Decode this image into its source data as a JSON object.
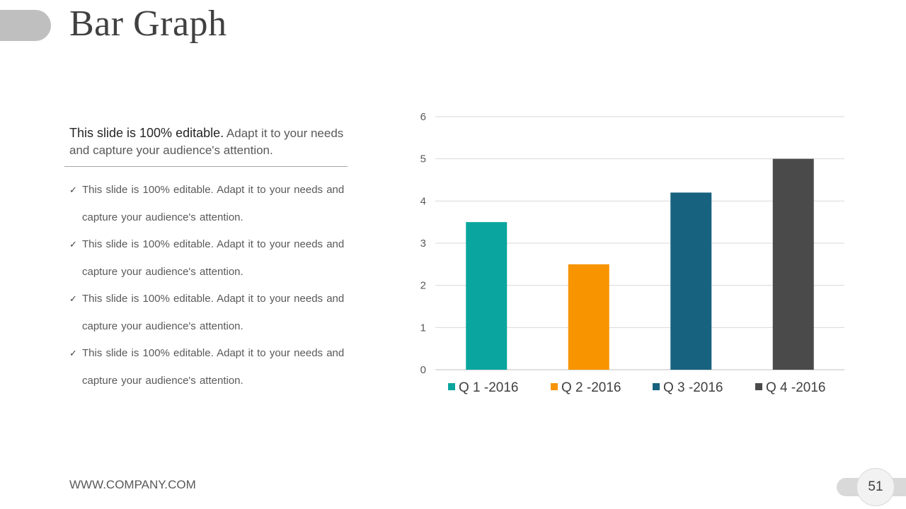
{
  "slide": {
    "title": "Bar Graph",
    "intro_strong": "This slide is 100% editable.",
    "intro_rest": " Adapt it to your needs and capture your audience's attention.",
    "bullets": [
      "This slide is 100% editable. Adapt it to your needs and capture your audience's attention.",
      "This slide is 100% editable. Adapt it to your needs and capture your audience's attention.",
      "This slide is 100% editable. Adapt it to your needs and capture your audience's attention.",
      "This slide is 100% editable. Adapt it to your needs and capture your audience's attention."
    ],
    "check_icon": "✓",
    "footer": "WWW.COMPANY.COM",
    "page_number": "51"
  },
  "chart_data": {
    "type": "bar",
    "title": "",
    "xlabel": "",
    "ylabel": "",
    "categories": [
      "Q 1 -2016",
      "Q 2 -2016",
      "Q 3 -2016",
      "Q 4 -2016"
    ],
    "values": [
      3.5,
      2.5,
      4.2,
      5
    ],
    "colors": [
      "#0aa59e",
      "#f79400",
      "#17627e",
      "#4a4a4a"
    ],
    "ylim": [
      0,
      6
    ],
    "yticks": [
      0,
      1,
      2,
      3,
      4,
      5,
      6
    ],
    "grid": true,
    "legend": "bottom",
    "legend_entries": [
      "Q 1 -2016",
      "Q 2 -2016",
      "Q 3 -2016",
      "Q 4 -2016"
    ]
  }
}
